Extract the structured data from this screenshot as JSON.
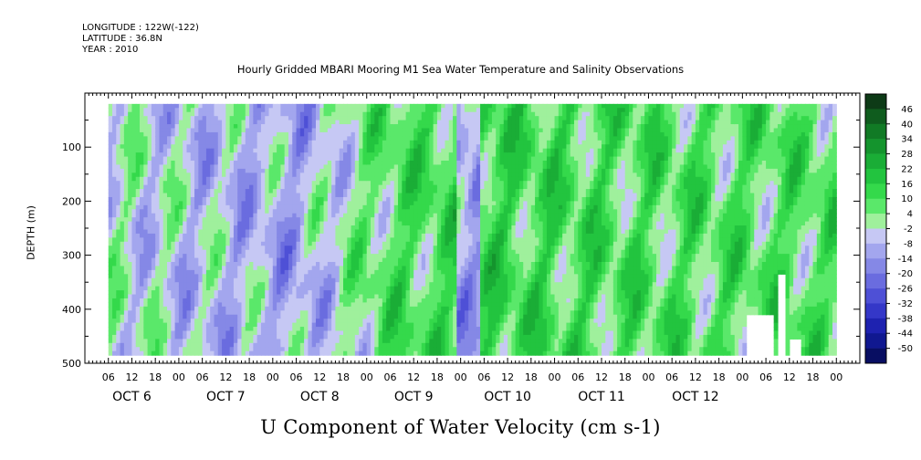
{
  "header": {
    "longitude": "LONGITUDE : 122W(-122)",
    "latitude": "LATITUDE : 36.8N",
    "year": "YEAR : 2010"
  },
  "chart_data": {
    "type": "heatmap",
    "title": "Hourly Gridded MBARI Mooring M1 Sea Water Temperature and Salinity Observations",
    "xlabel": "U Component of Water Velocity (cm s-1)",
    "ylabel": "DEPTH (m)",
    "ylim": [
      0,
      500
    ],
    "y_inverted": true,
    "yticks": [
      100,
      200,
      300,
      400,
      500
    ],
    "data_depth_range": [
      20,
      485
    ],
    "x_hour_ticks": [
      "06",
      "12",
      "18",
      "00",
      "06",
      "12",
      "18",
      "00",
      "06",
      "12",
      "18",
      "00",
      "06",
      "12",
      "18",
      "00",
      "06",
      "12",
      "18",
      "00",
      "06",
      "12",
      "18",
      "00",
      "06",
      "12",
      "18",
      "00",
      "06",
      "12",
      "18",
      "00"
    ],
    "x_hour_offsets": [
      6,
      12,
      18,
      24,
      30,
      36,
      42,
      48,
      54,
      60,
      66,
      72,
      78,
      84,
      90,
      96,
      102,
      108,
      114,
      120,
      126,
      132,
      138,
      144,
      150,
      156,
      162,
      168,
      174,
      180,
      186,
      192
    ],
    "x_hours_total": 198,
    "data_start_hour": 6,
    "data_end_hour": 192,
    "day_labels": [
      "OCT  6",
      "OCT  7",
      "OCT  8",
      "OCT  9",
      "OCT 10",
      "OCT 11",
      "OCT 12"
    ],
    "colorbar": {
      "labels": [
        "46",
        "40",
        "34",
        "28",
        "22",
        "16",
        "10",
        "4",
        "-2",
        "-8",
        "-14",
        "-20",
        "-26",
        "-32",
        "-38",
        "-44",
        "-50"
      ],
      "levels": [
        52,
        46,
        40,
        34,
        28,
        22,
        16,
        10,
        4,
        -2,
        -8,
        -14,
        -20,
        -26,
        -32,
        -38,
        -44,
        -50
      ],
      "colors": [
        "#0d3a16",
        "#0f5c1e",
        "#117a25",
        "#14942d",
        "#1aad36",
        "#22c43f",
        "#34d94b",
        "#5ae86a",
        "#9ff09c",
        "#c6c8f4",
        "#a3a6ee",
        "#8588e6",
        "#6a6cdf",
        "#4e50d6",
        "#3437c8",
        "#1e22b0",
        "#101890",
        "#080e62"
      ]
    },
    "series_note": "",
    "field_profile": [
      {
        "day": "OCT  6",
        "mean_u": -2
      },
      {
        "day": "OCT  7",
        "mean_u": -6
      },
      {
        "day": "OCT  8",
        "mean_u": -10
      },
      {
        "day": "OCT  9",
        "mean_u": 8
      },
      {
        "day": "OCT 10",
        "mean_u": 12
      },
      {
        "day": "OCT 11",
        "mean_u": 10
      },
      {
        "day": "OCT 12",
        "mean_u": 8
      }
    ]
  }
}
